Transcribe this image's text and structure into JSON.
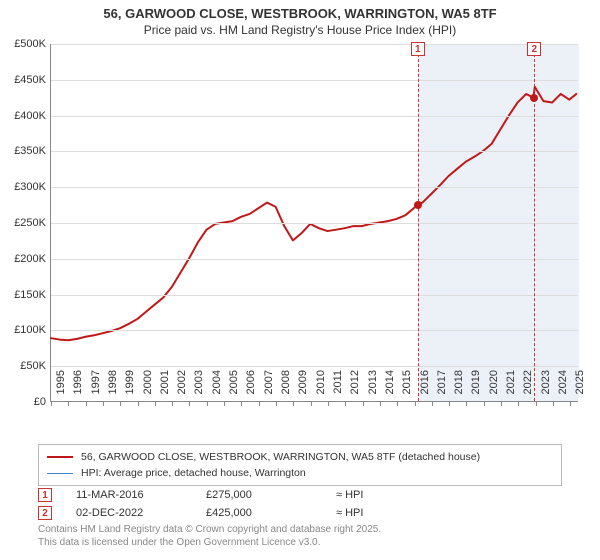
{
  "title": {
    "line1": "56, GARWOOD CLOSE, WESTBROOK, WARRINGTON, WA5 8TF",
    "line2": "Price paid vs. HM Land Registry's House Price Index (HPI)"
  },
  "chart": {
    "type": "line",
    "background_color": "#ffffff",
    "grid_color": "#dddddd",
    "axis_color": "#888888",
    "label_fontsize": 11,
    "label_color": "#333333",
    "ylim": [
      0,
      500000
    ],
    "ytick_step": 50000,
    "yticks": [
      {
        "v": 0,
        "label": "£0"
      },
      {
        "v": 50000,
        "label": "£50K"
      },
      {
        "v": 100000,
        "label": "£100K"
      },
      {
        "v": 150000,
        "label": "£150K"
      },
      {
        "v": 200000,
        "label": "£200K"
      },
      {
        "v": 250000,
        "label": "£250K"
      },
      {
        "v": 300000,
        "label": "£300K"
      },
      {
        "v": 350000,
        "label": "£350K"
      },
      {
        "v": 400000,
        "label": "£400K"
      },
      {
        "v": 450000,
        "label": "£450K"
      },
      {
        "v": 500000,
        "label": "£500K"
      }
    ],
    "xlim": [
      1995,
      2025.5
    ],
    "xticks": [
      1995,
      1996,
      1997,
      1998,
      1999,
      2000,
      2001,
      2002,
      2003,
      2004,
      2005,
      2006,
      2007,
      2008,
      2009,
      2010,
      2011,
      2012,
      2013,
      2014,
      2015,
      2016,
      2017,
      2018,
      2019,
      2020,
      2021,
      2022,
      2023,
      2024,
      2025
    ],
    "shade": {
      "from": 2016.19,
      "to": 2025.5,
      "color": "rgba(200,215,235,0.35)"
    },
    "series": {
      "red": {
        "label": "56, GARWOOD CLOSE, WESTBROOK, WARRINGTON, WA5 8TF (detached house)",
        "color": "#c01818",
        "line_width": 2,
        "points": [
          [
            1995.0,
            88000
          ],
          [
            1995.5,
            86000
          ],
          [
            1996.0,
            85000
          ],
          [
            1996.5,
            87000
          ],
          [
            1997.0,
            90000
          ],
          [
            1997.5,
            92000
          ],
          [
            1998.0,
            95000
          ],
          [
            1998.5,
            98000
          ],
          [
            1999.0,
            102000
          ],
          [
            1999.5,
            108000
          ],
          [
            2000.0,
            115000
          ],
          [
            2000.5,
            125000
          ],
          [
            2001.0,
            135000
          ],
          [
            2001.5,
            145000
          ],
          [
            2002.0,
            160000
          ],
          [
            2002.5,
            180000
          ],
          [
            2003.0,
            200000
          ],
          [
            2003.5,
            222000
          ],
          [
            2004.0,
            240000
          ],
          [
            2004.5,
            248000
          ],
          [
            2005.0,
            250000
          ],
          [
            2005.5,
            252000
          ],
          [
            2006.0,
            258000
          ],
          [
            2006.5,
            262000
          ],
          [
            2007.0,
            270000
          ],
          [
            2007.5,
            278000
          ],
          [
            2008.0,
            272000
          ],
          [
            2008.5,
            245000
          ],
          [
            2009.0,
            225000
          ],
          [
            2009.5,
            235000
          ],
          [
            2010.0,
            248000
          ],
          [
            2010.5,
            242000
          ],
          [
            2011.0,
            238000
          ],
          [
            2011.5,
            240000
          ],
          [
            2012.0,
            242000
          ],
          [
            2012.5,
            245000
          ],
          [
            2013.0,
            245000
          ],
          [
            2013.5,
            248000
          ],
          [
            2014.0,
            250000
          ],
          [
            2014.5,
            252000
          ],
          [
            2015.0,
            255000
          ],
          [
            2015.5,
            260000
          ],
          [
            2016.0,
            270000
          ],
          [
            2016.19,
            275000
          ],
          [
            2016.5,
            278000
          ],
          [
            2017.0,
            290000
          ],
          [
            2017.5,
            302000
          ],
          [
            2018.0,
            315000
          ],
          [
            2018.5,
            325000
          ],
          [
            2019.0,
            335000
          ],
          [
            2019.5,
            342000
          ],
          [
            2020.0,
            350000
          ],
          [
            2020.5,
            360000
          ],
          [
            2021.0,
            380000
          ],
          [
            2021.5,
            400000
          ],
          [
            2022.0,
            418000
          ],
          [
            2022.5,
            430000
          ],
          [
            2022.92,
            425000
          ],
          [
            2023.0,
            440000
          ],
          [
            2023.5,
            420000
          ],
          [
            2024.0,
            418000
          ],
          [
            2024.5,
            430000
          ],
          [
            2025.0,
            422000
          ],
          [
            2025.4,
            430000
          ]
        ]
      },
      "blue": {
        "label": "HPI: Average price, detached house, Warrington",
        "color": "#4a7fc4",
        "line_width": 1.5
      }
    },
    "markers": [
      {
        "n": "1",
        "x": 2016.19,
        "y": 275000,
        "dash_color": "#cc3333"
      },
      {
        "n": "2",
        "x": 2022.92,
        "y": 425000,
        "dash_color": "#cc3333"
      }
    ]
  },
  "legend": {
    "border_color": "#bbbbbb",
    "items": [
      {
        "color": "#c01818",
        "width": 2,
        "label": "56, GARWOOD CLOSE, WESTBROOK, WARRINGTON, WA5 8TF (detached house)"
      },
      {
        "color": "#4a7fc4",
        "width": 1,
        "label": "HPI: Average price, detached house, Warrington"
      }
    ]
  },
  "sales": [
    {
      "n": "1",
      "date": "11-MAR-2016",
      "price": "£275,000",
      "note": "≈ HPI"
    },
    {
      "n": "2",
      "date": "02-DEC-2022",
      "price": "£425,000",
      "note": "≈ HPI"
    }
  ],
  "footer": {
    "line1": "Contains HM Land Registry data © Crown copyright and database right 2025.",
    "line2": "This data is licensed under the Open Government Licence v3.0."
  }
}
